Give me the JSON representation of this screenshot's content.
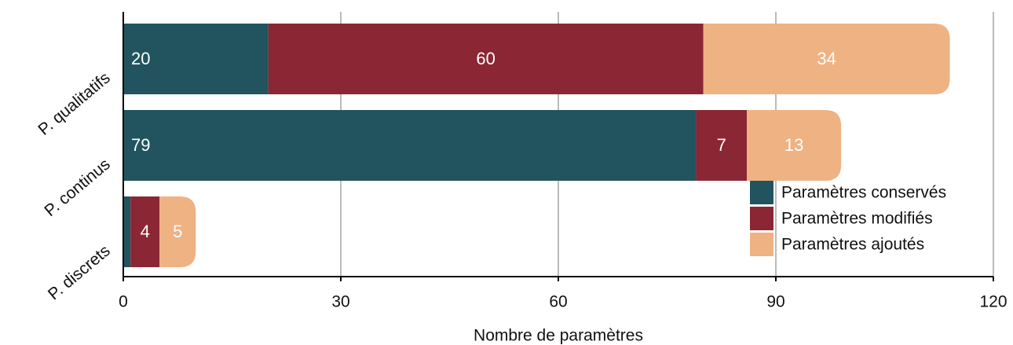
{
  "chart_data": {
    "type": "stacked-barh",
    "categories": [
      "P. qualitatifs",
      "P. continus",
      "P. discrets"
    ],
    "series": [
      {
        "name": "Paramètres conservés",
        "color": "#21545e",
        "values": [
          20,
          79,
          1
        ]
      },
      {
        "name": "Paramètres modifiés",
        "color": "#8b2635",
        "values": [
          60,
          7,
          4
        ]
      },
      {
        "name": "Paramètres ajoutés",
        "color": "#efb283",
        "values": [
          34,
          13,
          5
        ]
      }
    ],
    "xlabel": "Nombre de paramètres",
    "xlim": [
      0,
      120
    ],
    "xticks": [
      0,
      30,
      60,
      90,
      120
    ],
    "grid": true,
    "legend": "lower right"
  }
}
